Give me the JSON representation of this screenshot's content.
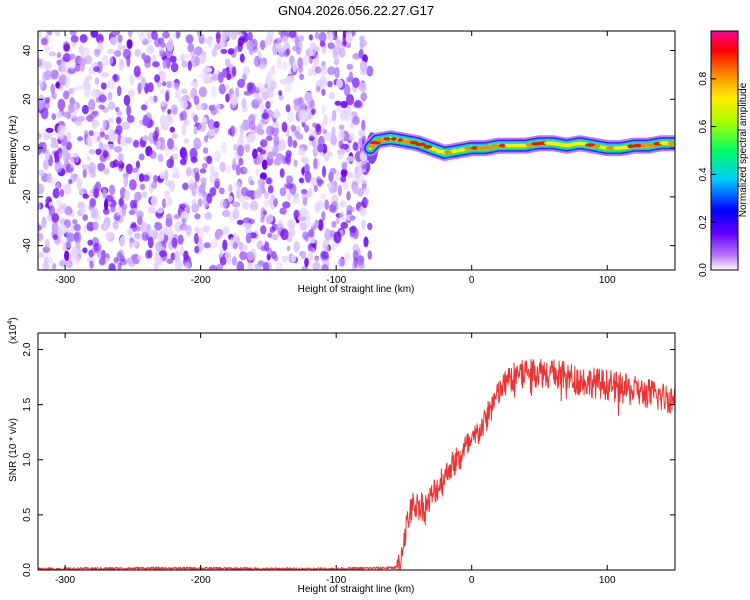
{
  "title": "GN04.2026.056.22.27.G17",
  "chart_data": [
    {
      "type": "heatmap",
      "xlabel": "Height of straight line (km)",
      "ylabel": "Frequency (Hz)",
      "xlim": [
        -320,
        150
      ],
      "ylim": [
        -50,
        48
      ],
      "xticks": [
        -300,
        -200,
        -100,
        0,
        100
      ],
      "xtick_labels": [
        "-300",
        "-200",
        "-100",
        "0",
        "100"
      ],
      "yticks": [
        -40,
        -20,
        0,
        20,
        40
      ],
      "ytick_labels": [
        "-40",
        "-20",
        "0",
        "20",
        "40"
      ],
      "noise_region_x": [
        -320,
        -75
      ],
      "colorbar": {
        "label": "Normalized spectral amplitude",
        "range": [
          0,
          1
        ],
        "ticks": [
          0.0,
          0.2,
          0.4,
          0.6,
          0.8
        ],
        "tick_labels": [
          "0.0",
          "0.2",
          "0.4",
          "0.6",
          "0.8"
        ],
        "colors": [
          "#ffffff",
          "#9933ff",
          "#0000ff",
          "#00ffff",
          "#00ff00",
          "#ffff00",
          "#ff8800",
          "#ff0000",
          "#ff00aa"
        ]
      },
      "ridge": {
        "name": "",
        "x": [
          -75,
          -70,
          -60,
          -50,
          -40,
          -30,
          -20,
          -10,
          0,
          10,
          20,
          30,
          40,
          50,
          60,
          70,
          80,
          90,
          100,
          110,
          120,
          130,
          140,
          150
        ],
        "frequency": [
          0,
          3,
          4,
          3,
          2,
          0,
          -2,
          -1,
          0,
          0,
          1,
          1,
          1,
          2,
          2,
          1,
          2,
          1,
          0,
          0,
          1,
          1,
          2,
          2
        ]
      }
    },
    {
      "type": "line",
      "xlabel": "Height of straight line (km)",
      "ylabel": "SNR (10 * v/v)",
      "y_multiplier": "(x10",
      "y_multiplier_exp": "4",
      "xlim": [
        -320,
        150
      ],
      "ylim": [
        0,
        2.15
      ],
      "xticks": [
        -300,
        -200,
        -100,
        0,
        100
      ],
      "xtick_labels": [
        "-300",
        "-200",
        "-100",
        "0",
        "100"
      ],
      "yticks": [
        0.0,
        0.5,
        1.0,
        1.5,
        2.0
      ],
      "ytick_labels": [
        "0.0",
        "0.5",
        "1.0",
        "1.5",
        "2.0"
      ],
      "color": "#ee3333",
      "series": [
        {
          "name": "",
          "x": [
            -320,
            -300,
            -250,
            -200,
            -150,
            -100,
            -60,
            -53,
            -50,
            -45,
            -40,
            -35,
            -30,
            -25,
            -20,
            -15,
            -10,
            -5,
            0,
            5,
            10,
            15,
            20,
            25,
            30,
            35,
            40,
            50,
            60,
            70,
            80,
            90,
            100,
            110,
            120,
            130,
            140,
            150
          ],
          "y": [
            0.01,
            0.01,
            0.015,
            0.015,
            0.01,
            0.01,
            0.02,
            0.03,
            0.3,
            0.55,
            0.6,
            0.55,
            0.65,
            0.75,
            0.85,
            0.95,
            1.0,
            1.1,
            1.15,
            1.25,
            1.35,
            1.5,
            1.6,
            1.7,
            1.75,
            1.8,
            1.8,
            1.8,
            1.78,
            1.75,
            1.72,
            1.7,
            1.68,
            1.65,
            1.62,
            1.6,
            1.57,
            1.55
          ]
        }
      ]
    }
  ]
}
